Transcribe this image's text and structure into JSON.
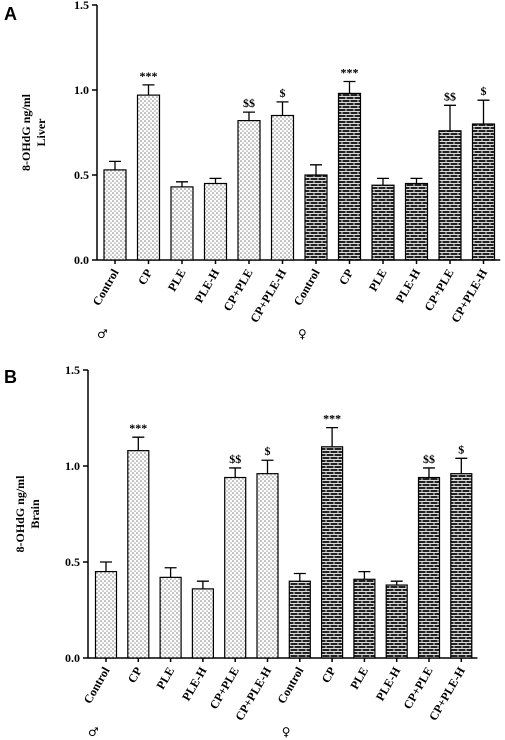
{
  "chart_data": [
    {
      "type": "bar",
      "panel": "A",
      "y_label": [
        "8-OHdG ng/ml",
        "Liver"
      ],
      "categories": [
        "Control",
        "CP",
        "PLE",
        "PLE-H",
        "CP+PLE",
        "CP+PLE-H",
        "Control",
        "CP",
        "PLE",
        "PLE-H",
        "CP+PLE",
        "CP+PLE-H"
      ],
      "values": [
        0.53,
        0.97,
        0.43,
        0.45,
        0.82,
        0.85,
        0.5,
        0.98,
        0.44,
        0.45,
        0.76,
        0.8
      ],
      "errors": [
        0.05,
        0.06,
        0.03,
        0.03,
        0.05,
        0.08,
        0.06,
        0.07,
        0.04,
        0.03,
        0.15,
        0.14
      ],
      "annotations": [
        null,
        "***",
        null,
        null,
        "$$",
        "$",
        null,
        "***",
        null,
        null,
        "$$",
        "$"
      ],
      "group_labels": [
        "♂",
        "♀"
      ],
      "ylim": [
        0,
        1.5
      ],
      "yticks": [
        {
          "value": 0,
          "label": "0.0"
        },
        {
          "value": 0.5,
          "label": "0.5"
        },
        {
          "value": 1,
          "label": "1.0"
        },
        {
          "value": 1.5,
          "label": "1.5"
        }
      ]
    },
    {
      "type": "bar",
      "panel": "B",
      "y_label": [
        "8-OHdG ng/ml",
        "Brain"
      ],
      "categories": [
        "Control",
        "CP",
        "PLE",
        "PLE-H",
        "CP+PLE",
        "CP+PLE-H",
        "Control",
        "CP",
        "PLE",
        "PLE-H",
        "CP+PLE",
        "CP+PLE-H"
      ],
      "values": [
        0.45,
        1.08,
        0.42,
        0.36,
        0.94,
        0.96,
        0.4,
        1.1,
        0.41,
        0.38,
        0.94,
        0.96
      ],
      "errors": [
        0.05,
        0.07,
        0.05,
        0.04,
        0.05,
        0.07,
        0.04,
        0.1,
        0.04,
        0.02,
        0.05,
        0.08
      ],
      "annotations": [
        null,
        "***",
        null,
        null,
        "$$",
        "$",
        null,
        "***",
        null,
        null,
        "$$",
        "$"
      ],
      "group_labels": [
        "♂",
        "♀"
      ],
      "ylim": [
        0,
        1.5
      ],
      "yticks": [
        {
          "value": 0,
          "label": "0.0"
        },
        {
          "value": 0.5,
          "label": "0.5"
        },
        {
          "value": 1,
          "label": "1.0"
        },
        {
          "value": 1.5,
          "label": "1.5"
        }
      ]
    }
  ]
}
